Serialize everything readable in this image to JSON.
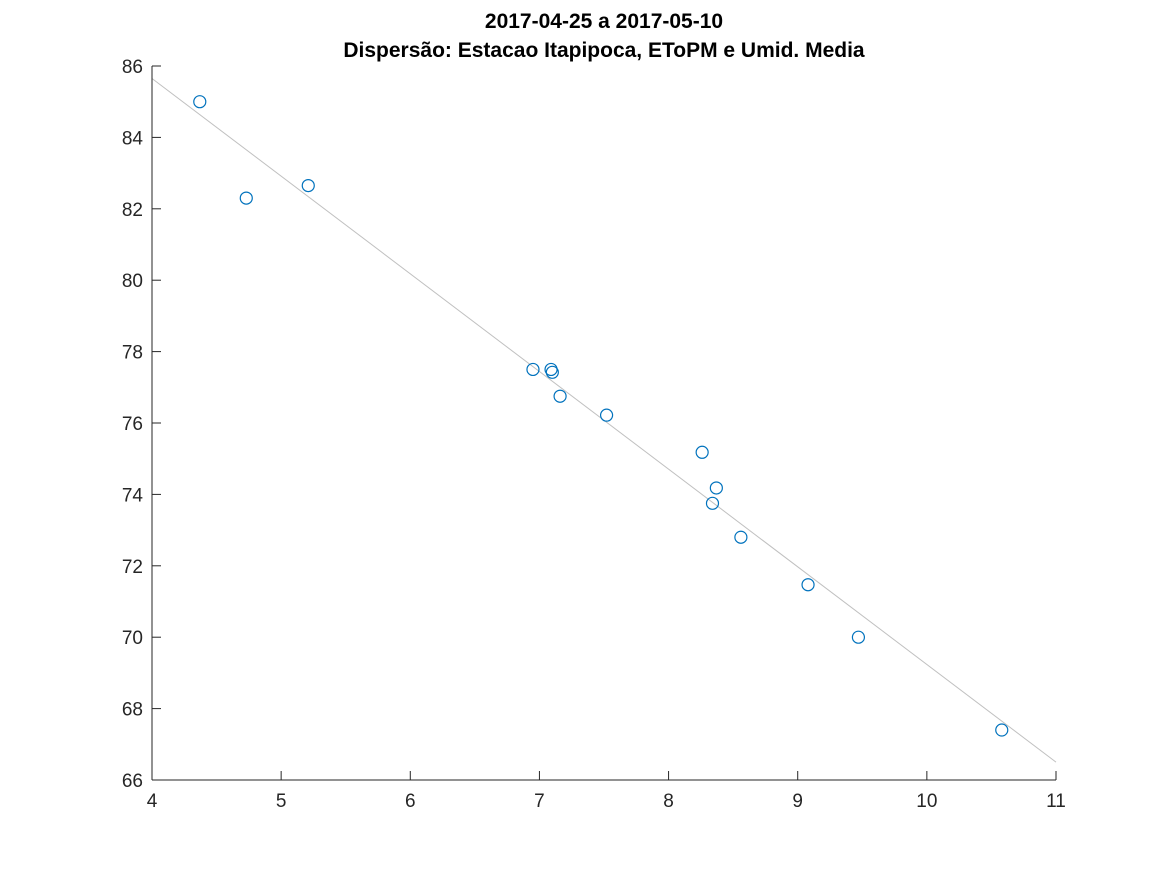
{
  "chart_data": {
    "type": "scatter",
    "title": [
      "2017-04-25 a 2017-05-10",
      "Dispersão: Estacao Itapipoca, EToPM e Umid. Media"
    ],
    "xlabel": "",
    "ylabel": "",
    "xlim": [
      4,
      11
    ],
    "ylim": [
      66,
      86
    ],
    "xticks": [
      4,
      5,
      6,
      7,
      8,
      9,
      10,
      11
    ],
    "yticks": [
      66,
      68,
      70,
      72,
      74,
      76,
      78,
      80,
      82,
      84,
      86
    ],
    "grid": false,
    "legend": "none",
    "series": [
      {
        "marker": "circle",
        "color": "#0072bd",
        "points": [
          {
            "x": 4.37,
            "y": 85.0
          },
          {
            "x": 4.73,
            "y": 82.3
          },
          {
            "x": 5.21,
            "y": 82.65
          },
          {
            "x": 6.95,
            "y": 77.5
          },
          {
            "x": 7.09,
            "y": 77.5
          },
          {
            "x": 7.1,
            "y": 77.42
          },
          {
            "x": 7.16,
            "y": 76.75
          },
          {
            "x": 7.52,
            "y": 76.22
          },
          {
            "x": 8.26,
            "y": 75.18
          },
          {
            "x": 8.37,
            "y": 74.18
          },
          {
            "x": 8.34,
            "y": 73.75
          },
          {
            "x": 8.56,
            "y": 72.8
          },
          {
            "x": 9.08,
            "y": 71.47
          },
          {
            "x": 9.47,
            "y": 70.0
          },
          {
            "x": 10.58,
            "y": 67.4
          }
        ]
      }
    ],
    "trendline": {
      "type": "linear",
      "color": "#c0c0c0",
      "x": [
        4,
        11
      ],
      "y": [
        85.65,
        66.5
      ]
    }
  }
}
